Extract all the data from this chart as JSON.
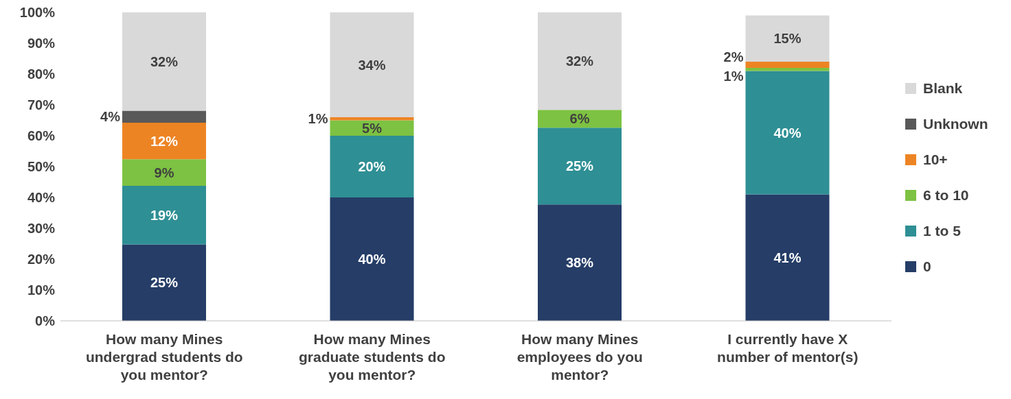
{
  "chart_data": {
    "type": "bar",
    "stacked": true,
    "categories": [
      "How many Mines undergrad students do you mentor?",
      "How many Mines graduate students do you mentor?",
      "How many Mines employees do you mentor?",
      "I currently have X number of mentor(s)"
    ],
    "series": [
      {
        "name": "0",
        "color": "#253d67",
        "values": [
          24.8,
          40,
          37.7,
          41
        ],
        "value_labels": [
          "25%",
          "40%",
          "38%",
          "41%"
        ]
      },
      {
        "name": "1 to 5",
        "color": "#2e8f94",
        "values": [
          19,
          20,
          24.9,
          40
        ],
        "value_labels": [
          "19%",
          "20%",
          "25%",
          "40%"
        ]
      },
      {
        "name": "6 to 10",
        "color": "#7dc242",
        "values": [
          8.6,
          5,
          5.8,
          1
        ],
        "value_labels": [
          "9%",
          "5%",
          "6%",
          "1%"
        ]
      },
      {
        "name": "10+",
        "color": "#ed8424",
        "values": [
          11.8,
          1,
          null,
          2
        ],
        "value_labels": [
          "12%",
          "1%",
          null,
          "2%"
        ]
      },
      {
        "name": "Unknown",
        "color": "#595959",
        "values": [
          3.9,
          null,
          null,
          null
        ],
        "value_labels": [
          "4%",
          null,
          null,
          null
        ]
      },
      {
        "name": "Blank",
        "color": "#d9d9d9",
        "values": [
          31.9,
          34,
          31.6,
          15
        ],
        "value_labels": [
          "32%",
          "34%",
          "32%",
          "15%"
        ]
      }
    ],
    "ylim": [
      0,
      100
    ],
    "yticks": [
      {
        "value": 0,
        "label": "0%"
      },
      {
        "value": 10,
        "label": "10%"
      },
      {
        "value": 20,
        "label": "20%"
      },
      {
        "value": 30,
        "label": "30%"
      },
      {
        "value": 40,
        "label": "40%"
      },
      {
        "value": 50,
        "label": "50%"
      },
      {
        "value": 60,
        "label": "60%"
      },
      {
        "value": 70,
        "label": "70%"
      },
      {
        "value": 80,
        "label": "80%"
      },
      {
        "value": 90,
        "label": "90%"
      },
      {
        "value": 100,
        "label": "100%"
      }
    ],
    "grid": false,
    "legend": "right"
  }
}
